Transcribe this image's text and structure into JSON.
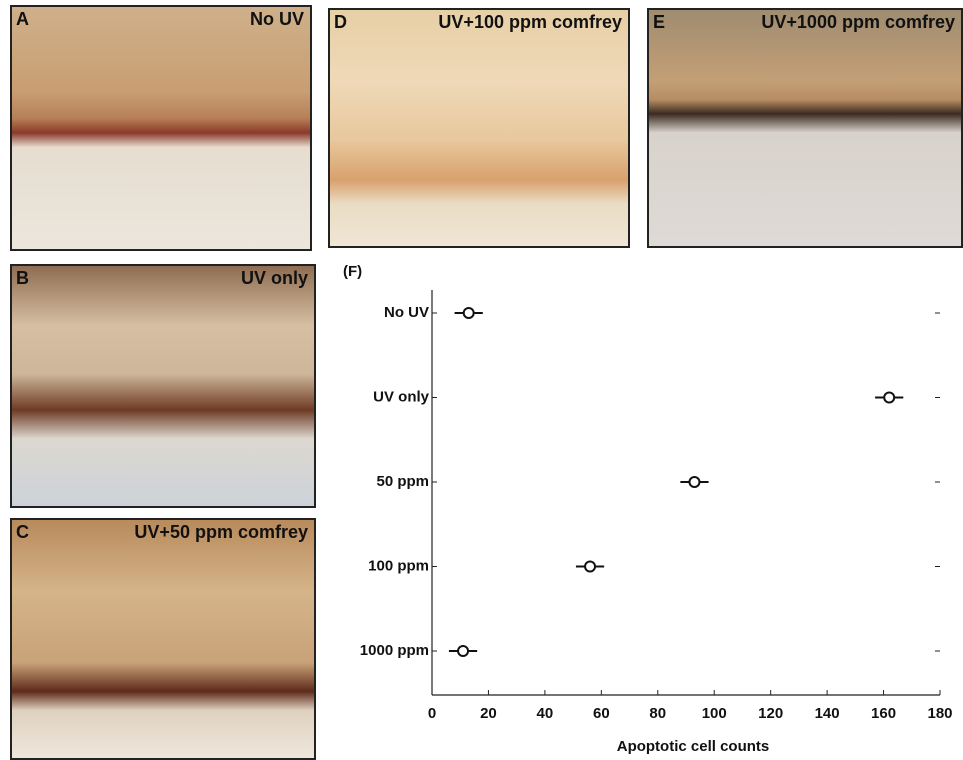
{
  "panels": [
    {
      "letter": "A",
      "caption": "No UV"
    },
    {
      "letter": "D",
      "caption": "UV+100 ppm comfrey"
    },
    {
      "letter": "E",
      "caption": "UV+1000 ppm comfrey"
    },
    {
      "letter": "B",
      "caption": "UV only"
    },
    {
      "letter": "C",
      "caption": "UV+50 ppm comfrey"
    }
  ],
  "chart_data": {
    "type": "dot",
    "title": "(F)",
    "x_label": "Apoptotic cell counts",
    "categories": [
      "No UV",
      "UV only",
      "50 ppm",
      "100 ppm",
      "1000 ppm"
    ],
    "values": [
      13,
      162,
      93,
      56,
      11
    ],
    "errors": [
      5,
      5,
      5,
      5,
      5
    ],
    "color": "#111111",
    "xlim": [
      0,
      180
    ],
    "xticks": [
      0,
      20,
      40,
      60,
      80,
      100,
      120,
      140,
      160,
      180
    ]
  }
}
